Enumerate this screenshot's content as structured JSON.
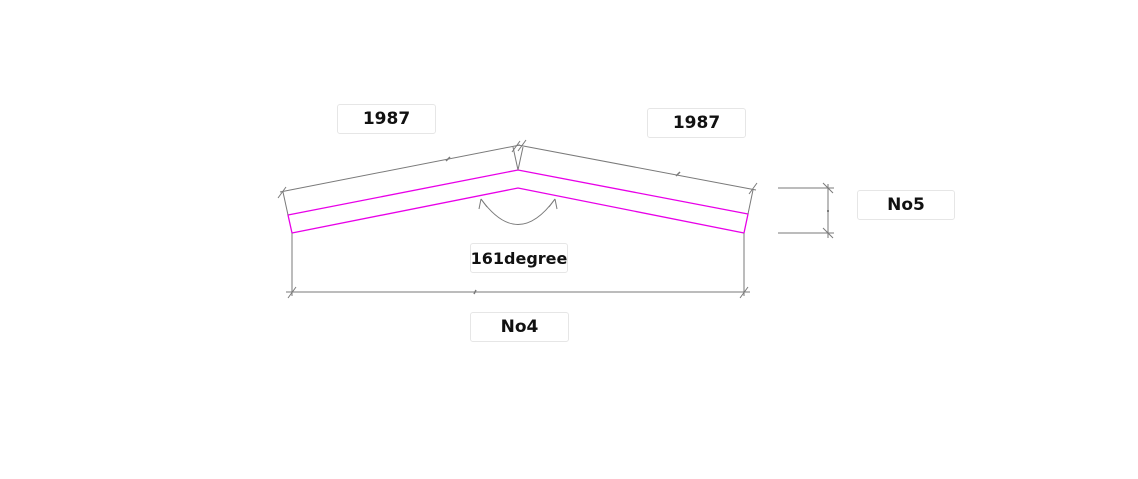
{
  "labels": {
    "left_length": "1987",
    "right_length": "1987",
    "angle": "161degree",
    "bottom_span": "No4",
    "thickness": "No5"
  },
  "colors": {
    "profile": "#e800e8",
    "dimension_line": "#7a7a7a",
    "label_border": "#e6e6e6",
    "label_text": "#111111"
  }
}
